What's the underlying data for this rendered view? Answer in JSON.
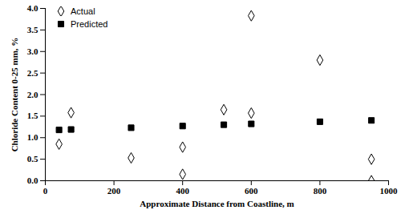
{
  "chart_data": {
    "type": "scatter",
    "x_label": "Approximate Distance from Coastline, m",
    "y_label": "Chloride Content 0-25 mm, %",
    "xlim": [
      0,
      1000
    ],
    "xticks": [
      0,
      200,
      400,
      600,
      800,
      1000
    ],
    "ylim": [
      0,
      4
    ],
    "yticks": [
      {
        "value": 0,
        "label": "0.0"
      },
      0.5,
      {
        "value": 1,
        "label": "1.0"
      },
      1.5,
      {
        "value": 2,
        "label": "2.0"
      },
      2.5,
      {
        "value": 3,
        "label": "3.0"
      },
      3.5,
      {
        "value": 4,
        "label": "4.0"
      }
    ],
    "grid": false,
    "legend": "top-left",
    "series": [
      {
        "name": "Actual",
        "color": "#000000",
        "marker": "diamond_open",
        "x": [
          40,
          75,
          250,
          400,
          400,
          520,
          600,
          600,
          800,
          950,
          950
        ],
        "values": [
          0.85,
          1.58,
          0.53,
          0.78,
          0.15,
          1.65,
          3.83,
          1.57,
          2.8,
          0.5,
          0.0
        ]
      },
      {
        "name": "Predicted",
        "color": "#000000",
        "marker": "square",
        "x": [
          40,
          75,
          250,
          400,
          520,
          600,
          800,
          950
        ],
        "values": [
          1.18,
          1.19,
          1.23,
          1.27,
          1.3,
          1.32,
          1.37,
          1.4
        ]
      }
    ]
  }
}
